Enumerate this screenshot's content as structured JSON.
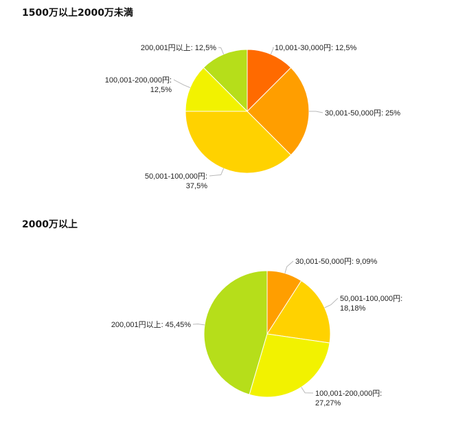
{
  "chart_data": [
    {
      "type": "pie",
      "title": "1500万以上2000万未満",
      "slices": [
        {
          "label": "10,001-30,000円: 12,5%",
          "value": 12.5,
          "color": "#ff6a00"
        },
        {
          "label": "30,001-50,000円: 25%",
          "value": 25,
          "color": "#ff9e00"
        },
        {
          "label": "50,001-100,000円: 37,5%",
          "value": 37.5,
          "color": "#ffd200"
        },
        {
          "label": "100,001-200,000円: 12,5%",
          "value": 12.5,
          "color": "#f2f200"
        },
        {
          "label": "200,001円以上: 12,5%",
          "value": 12.5,
          "color": "#b6de1a"
        }
      ]
    },
    {
      "type": "pie",
      "title": "2000万以上",
      "slices": [
        {
          "label": "30,001-50,000円: 9,09%",
          "value": 9.09,
          "color": "#ff9e00"
        },
        {
          "label": "50,001-100,000円: 18,18%",
          "value": 18.18,
          "color": "#ffd200"
        },
        {
          "label": "100,001-200,000円: 27,27%",
          "value": 27.27,
          "color": "#f2f200"
        },
        {
          "label": "200,001円以上: 45,45%",
          "value": 45.45,
          "color": "#b6de1a"
        }
      ]
    }
  ]
}
